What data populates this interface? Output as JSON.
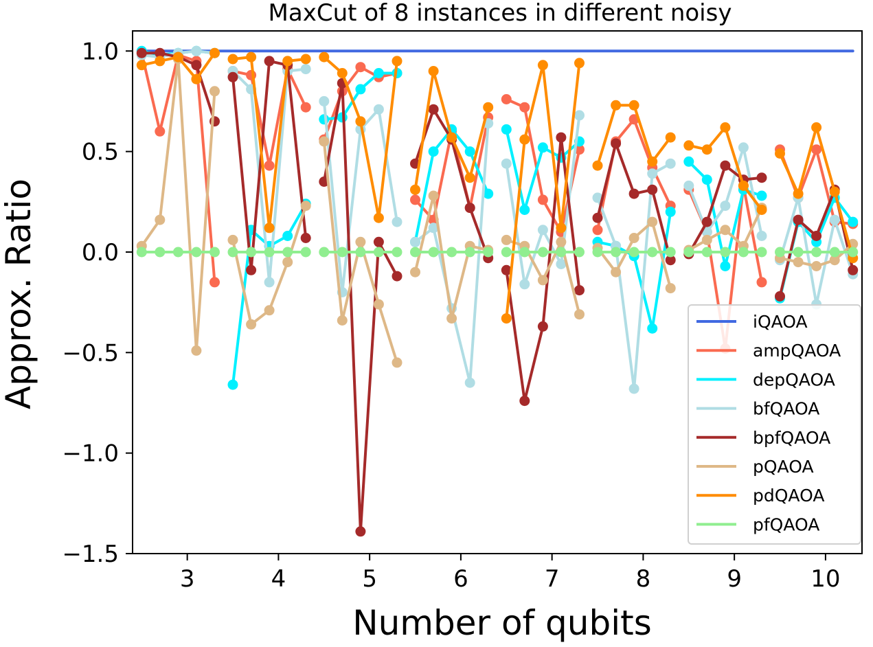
{
  "chart_data": {
    "type": "line",
    "title": "MaxCut of 8 instances in different noisy",
    "xlabel": "Number of qubits",
    "ylabel": "Approx. Ratio",
    "xlim": [
      2.4,
      10.4
    ],
    "ylim": [
      -1.5,
      1.1
    ],
    "xticks": [
      3,
      4,
      5,
      6,
      7,
      8,
      9,
      10
    ],
    "xtick_labels": [
      "3",
      "4",
      "5",
      "6",
      "7",
      "8",
      "9",
      "10"
    ],
    "yticks": [
      1.0,
      0.5,
      0.0,
      -0.5,
      -1.0,
      -1.5
    ],
    "ytick_labels": [
      "1.0",
      "0.5",
      "0.0",
      "−0.5",
      "−1.0",
      "−1.5"
    ],
    "grid": false,
    "legend_position": "lower-right",
    "groups": [
      [
        2.5,
        2.7,
        2.9,
        3.1,
        3.3
      ],
      [
        3.5,
        3.7,
        3.9,
        4.1,
        4.3
      ],
      [
        4.5,
        4.7,
        4.9,
        5.1,
        5.3
      ],
      [
        5.5,
        5.7,
        5.9,
        6.1,
        6.3
      ],
      [
        6.5,
        6.7,
        6.9,
        7.1,
        7.3
      ],
      [
        7.5,
        7.7,
        7.9,
        8.1,
        8.3
      ],
      [
        8.5,
        8.7,
        8.9,
        9.1,
        9.3
      ],
      [
        9.5,
        9.7,
        9.9,
        10.1,
        10.3
      ]
    ],
    "series": [
      {
        "name": "iQAOA",
        "color": "#4169e1",
        "markers": false,
        "x": [
          2.5,
          10.3
        ],
        "y": [
          1.0,
          1.0
        ]
      },
      {
        "name": "ampQAOA",
        "color": "#fa6a50",
        "markers": true,
        "values": [
          [
            0.99,
            0.6,
            0.98,
            0.95,
            -0.15
          ],
          [
            0.9,
            0.88,
            0.43,
            0.91,
            0.72
          ],
          [
            0.56,
            0.8,
            0.92,
            0.87,
            0.89
          ],
          [
            0.26,
            0.16,
            0.6,
            0.22,
            0.67
          ],
          [
            0.76,
            0.72,
            0.26,
            0.1,
            0.51
          ],
          [
            0.11,
            0.55,
            0.66,
            0.42,
            0.23
          ],
          [
            0.31,
            0.1,
            -0.48,
            0.33,
            -0.15
          ],
          [
            0.51,
            0.27,
            0.51,
            0.15,
            0.14
          ]
        ]
      },
      {
        "name": "depQAOA",
        "color": "#00f0ff",
        "markers": true,
        "values": [
          [
            1.0,
            0.98,
            0.99,
            1.0,
            0.99
          ],
          [
            -0.66,
            0.11,
            0.03,
            0.08,
            0.24
          ],
          [
            0.66,
            0.67,
            0.81,
            0.89,
            0.89
          ],
          [
            0.05,
            0.5,
            0.61,
            0.5,
            0.29
          ],
          [
            0.61,
            0.21,
            0.52,
            0.47,
            0.55
          ],
          [
            0.05,
            0.03,
            -0.02,
            -0.38,
            0.2
          ],
          [
            0.45,
            0.36,
            -0.07,
            0.31,
            0.28
          ],
          [
            -0.23,
            0.15,
            0.05,
            0.27,
            0.15
          ]
        ]
      },
      {
        "name": "bfQAOA",
        "color": "#b0dde4",
        "markers": true,
        "values": [
          [
            0.98,
            0.97,
            0.99,
            1.0,
            0.99
          ],
          [
            0.9,
            0.81,
            -0.15,
            0.9,
            0.91
          ],
          [
            0.75,
            -0.2,
            0.61,
            0.71,
            0.15
          ],
          [
            0.05,
            0.12,
            -0.28,
            -0.65,
            0.64
          ],
          [
            0.44,
            -0.16,
            0.11,
            -0.06,
            0.68
          ],
          [
            0.27,
            0.03,
            -0.68,
            0.39,
            0.44
          ],
          [
            0.33,
            0.1,
            0.23,
            0.52,
            0.08
          ],
          [
            -0.04,
            0.27,
            -0.26,
            0.16,
            -0.11
          ]
        ]
      },
      {
        "name": "bpfQAOA",
        "color": "#a52a2a",
        "markers": true,
        "values": [
          [
            0.99,
            0.99,
            0.97,
            0.93,
            0.65
          ],
          [
            0.87,
            -0.09,
            0.95,
            0.93,
            0.07
          ],
          [
            0.35,
            0.84,
            -1.39,
            0.05,
            -0.12
          ],
          [
            0.44,
            0.71,
            0.56,
            0.22,
            -0.03
          ],
          [
            -0.09,
            -0.74,
            -0.37,
            0.57,
            -0.19
          ],
          [
            0.17,
            0.54,
            0.29,
            0.31,
            -0.04
          ],
          [
            -0.01,
            0.15,
            0.43,
            0.36,
            0.37
          ],
          [
            -0.22,
            0.16,
            0.08,
            0.31,
            -0.09
          ]
        ]
      },
      {
        "name": "pQAOA",
        "color": "#deb887",
        "markers": true,
        "values": [
          [
            0.03,
            0.16,
            0.96,
            -0.49,
            0.8
          ],
          [
            0.06,
            -0.36,
            -0.29,
            -0.05,
            0.23
          ],
          [
            0.55,
            -0.34,
            0.05,
            -0.26,
            -0.55
          ],
          [
            -0.1,
            0.28,
            -0.33,
            0.03,
            0.01
          ],
          [
            0.06,
            0.03,
            -0.14,
            0.05,
            -0.31
          ],
          [
            0.02,
            -0.1,
            0.07,
            0.15,
            -0.18
          ],
          [
            0.01,
            0.06,
            0.11,
            0.03,
            0.22
          ],
          [
            -0.03,
            -0.05,
            -0.07,
            -0.04,
            0.04
          ]
        ]
      },
      {
        "name": "pdQAOA",
        "color": "#ff8c00",
        "markers": true,
        "values": [
          [
            0.93,
            0.95,
            0.97,
            0.86,
            0.99
          ],
          [
            0.96,
            0.97,
            0.12,
            0.95,
            0.96
          ],
          [
            0.97,
            0.89,
            0.65,
            0.17,
            0.95
          ],
          [
            0.31,
            0.9,
            0.57,
            0.37,
            0.72
          ],
          [
            -0.33,
            0.56,
            0.93,
            0.12,
            0.94
          ],
          [
            0.43,
            0.73,
            0.73,
            0.45,
            0.57
          ],
          [
            0.53,
            0.51,
            0.62,
            0.33,
            0.21
          ],
          [
            0.49,
            0.29,
            0.62,
            0.3,
            -0.03
          ]
        ]
      },
      {
        "name": "pfQAOA",
        "color": "#90ee90",
        "markers": true,
        "values": [
          [
            0.0,
            0.0,
            0.0,
            0.0,
            0.0
          ],
          [
            0.0,
            0.0,
            0.0,
            0.0,
            0.0
          ],
          [
            0.0,
            0.0,
            0.0,
            0.0,
            0.0
          ],
          [
            0.0,
            0.0,
            0.0,
            0.0,
            0.0
          ],
          [
            0.0,
            0.0,
            0.0,
            0.0,
            0.0
          ],
          [
            0.0,
            0.0,
            0.0,
            0.0,
            0.0
          ],
          [
            0.0,
            0.0,
            0.0,
            0.0,
            0.0
          ],
          [
            0.0,
            0.0,
            0.0,
            0.0,
            0.0
          ]
        ]
      }
    ]
  }
}
